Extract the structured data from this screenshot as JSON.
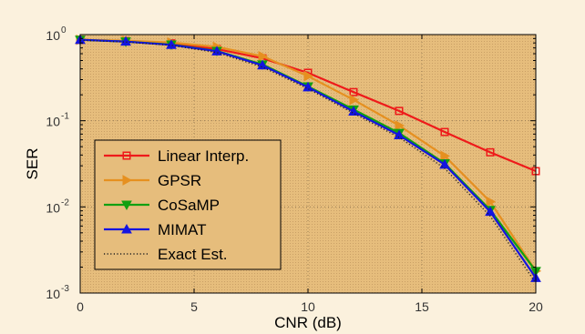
{
  "chart_data": {
    "type": "line",
    "title": "",
    "xlabel": "CNR (dB)",
    "ylabel": "SER",
    "xlim": [
      0,
      20
    ],
    "ylim": [
      0.001,
      1
    ],
    "yscale": "log",
    "grid": true,
    "legend_position": "bottom-left",
    "x": [
      0,
      2,
      4,
      6,
      8,
      10,
      12,
      14,
      16,
      18,
      20
    ],
    "x_ticks": [
      0,
      5,
      10,
      15,
      20
    ],
    "y_ticks": [
      {
        "base": "10",
        "exp": "0"
      },
      {
        "base": "10",
        "exp": "-1"
      },
      {
        "base": "10",
        "exp": "-2"
      },
      {
        "base": "10",
        "exp": "-3"
      }
    ],
    "colors": {
      "figure_background": "#fbf1dd",
      "plot_background": "#e6bd7c",
      "grid": "#9a7e55"
    },
    "series": [
      {
        "name": "Linear Interp.",
        "color": "#ee1a1a",
        "marker": "square",
        "values": [
          0.87,
          0.84,
          0.79,
          0.68,
          0.53,
          0.36,
          0.215,
          0.13,
          0.074,
          0.043,
          0.026
        ]
      },
      {
        "name": "GPSR",
        "color": "#e69020",
        "marker": "triangle-right",
        "values": [
          0.87,
          0.85,
          0.81,
          0.72,
          0.56,
          0.33,
          0.175,
          0.088,
          0.039,
          0.0115,
          0.0018
        ]
      },
      {
        "name": "CoSaMP",
        "color": "#11a011",
        "marker": "triangle-down",
        "values": [
          0.87,
          0.83,
          0.765,
          0.645,
          0.45,
          0.25,
          0.135,
          0.072,
          0.032,
          0.0092,
          0.0018
        ]
      },
      {
        "name": "MIMAT",
        "color": "#1414e0",
        "marker": "triangle-up",
        "values": [
          0.87,
          0.83,
          0.76,
          0.64,
          0.44,
          0.245,
          0.128,
          0.068,
          0.031,
          0.0088,
          0.0015
        ]
      },
      {
        "name": "Exact Est.",
        "color": "#222222",
        "marker": "none",
        "dash": "dotted",
        "values": [
          0.86,
          0.82,
          0.75,
          0.62,
          0.42,
          0.235,
          0.122,
          0.064,
          0.028,
          0.0078,
          0.0013
        ]
      }
    ]
  }
}
